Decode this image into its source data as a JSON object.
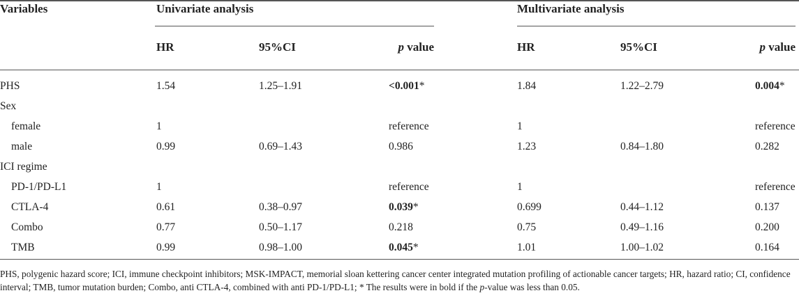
{
  "header": {
    "variables": "Variables",
    "groups": [
      "Univariate analysis",
      "Multivariate analysis"
    ],
    "columns": [
      "HR",
      "95%CI",
      {
        "italic": "p",
        "rest": "value"
      },
      "HR",
      "95%CI",
      {
        "italic": "p",
        "rest": "value"
      }
    ]
  },
  "table": {
    "rows": [
      {
        "label": "PHS",
        "indent": false,
        "cells": [
          "1.54",
          "1.25–1.91",
          {
            "text": "<0.001",
            "bold": true,
            "note": "*"
          },
          "1.84",
          "1.22–2.79",
          {
            "text": "0.004",
            "bold": true,
            "note": "*"
          }
        ]
      },
      {
        "label": "Sex",
        "indent": false,
        "cells": [
          null,
          null,
          null,
          null,
          null,
          null
        ]
      },
      {
        "label": "female",
        "indent": true,
        "cells": [
          "1",
          null,
          "reference",
          "1",
          null,
          "reference"
        ]
      },
      {
        "label": "male",
        "indent": true,
        "cells": [
          "0.99",
          "0.69–1.43",
          "0.986",
          "1.23",
          "0.84–1.80",
          "0.282"
        ]
      },
      {
        "label": "ICI regime",
        "indent": false,
        "cells": [
          null,
          null,
          null,
          null,
          null,
          null
        ]
      },
      {
        "label": "PD-1/PD-L1",
        "indent": true,
        "cells": [
          "1",
          null,
          "reference",
          "1",
          null,
          "reference"
        ]
      },
      {
        "label": "CTLA-4",
        "indent": true,
        "cells": [
          "0.61",
          "0.38–0.97",
          {
            "text": "0.039",
            "bold": true,
            "note": "*"
          },
          "0.699",
          "0.44–1.12",
          "0.137"
        ]
      },
      {
        "label": "Combo",
        "indent": true,
        "cells": [
          "0.77",
          "0.50–1.17",
          "0.218",
          "0.75",
          "0.49–1.16",
          "0.200"
        ]
      },
      {
        "label": "TMB",
        "indent": true,
        "cells": [
          "0.99",
          "0.98–1.00",
          {
            "text": "0.045",
            "bold": true,
            "note": "*"
          },
          "1.01",
          "1.00–1.02",
          "0.164"
        ]
      }
    ]
  },
  "footnote": {
    "before": "PHS, polygenic hazard score; ICI, immune checkpoint inhibitors; MSK-IMPACT, memorial sloan kettering cancer center integrated mutation profiling of actionable cancer targets; HR, hazard ratio; CI, confidence interval; TMB, tumor mutation burden; Combo, anti CTLA-4, combined with anti PD-1/PD-L1; * The results were in bold if the ",
    "italic": "p",
    "after": "-value was less than 0.05."
  }
}
